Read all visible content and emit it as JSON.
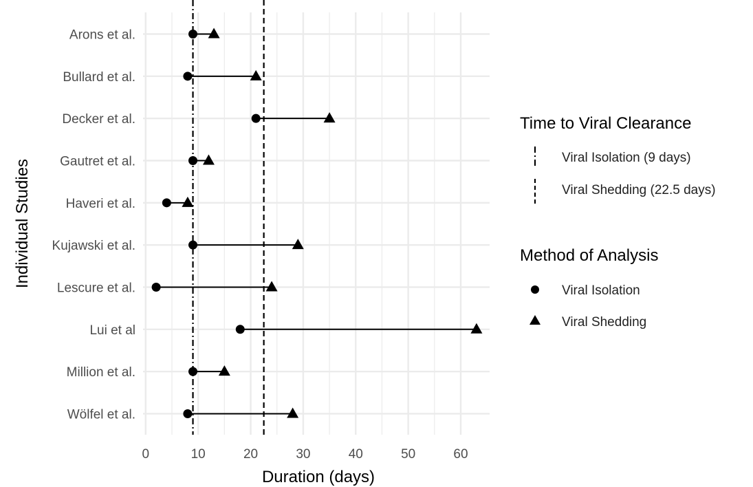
{
  "chart_data": {
    "type": "scatter",
    "xlabel": "Duration (days)",
    "ylabel": "Individual Studies",
    "xlim": [
      -0.5,
      65.5
    ],
    "x_ticks": [
      0,
      10,
      20,
      30,
      40,
      50,
      60
    ],
    "grid": true,
    "legend_position": "right",
    "categories": [
      "Arons et al.",
      "Bullard et al.",
      "Decker et al.",
      "Gautret et al.",
      "Haveri et al.",
      "Kujawski et al.",
      "Lescure et al.",
      "Lui et al",
      "Million et al.",
      "Wölfel et al."
    ],
    "series": [
      {
        "name": "Viral Isolation",
        "marker": "circle",
        "values": [
          9,
          8,
          21,
          9,
          4,
          9,
          2,
          18,
          9,
          8
        ]
      },
      {
        "name": "Viral Shedding",
        "marker": "triangle",
        "values": [
          13,
          21,
          35,
          12,
          8,
          29,
          24,
          63,
          15,
          28
        ]
      }
    ],
    "reference_lines": [
      {
        "label": "Viral Isolation (9 days)",
        "x": 9,
        "style": "dashdot"
      },
      {
        "label": "Viral Shedding (22.5 days)",
        "x": 22.5,
        "style": "dashed"
      }
    ],
    "legends": [
      {
        "title": "Time to Viral Clearance",
        "entries": [
          "Viral Isolation (9 days)",
          "Viral Shedding (22.5 days)"
        ]
      },
      {
        "title": "Method of Analysis",
        "entries": [
          "Viral Isolation",
          "Viral Shedding"
        ]
      }
    ],
    "colors": {
      "marker": "#000000",
      "grid": "#ebebeb",
      "text": "#4d4d4d"
    }
  }
}
